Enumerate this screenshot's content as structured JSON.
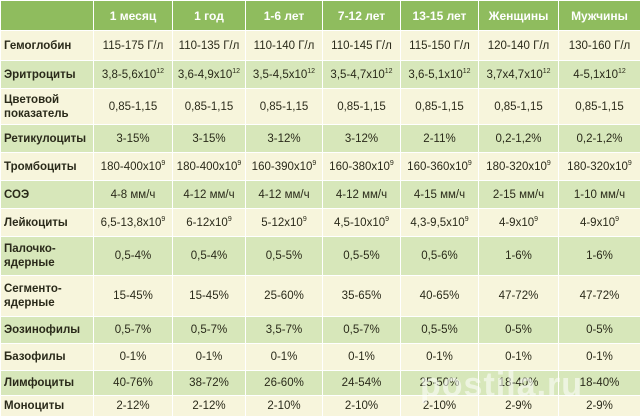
{
  "table": {
    "header": [
      "1 месяц",
      "1 год",
      "1-6 лет",
      "7-12 лет",
      "13-15 лет",
      "Женщины",
      "Мужчины"
    ],
    "rows": [
      {
        "label": "Гемоглобин",
        "cells": [
          "115-175 Г/л",
          "110-135 Г/л",
          "110-140 Г/л",
          "110-145 Г/л",
          "115-150 Г/л",
          "120-140 Г/л",
          "130-160 Г/л"
        ]
      },
      {
        "label": "Эритроциты",
        "cells": [
          {
            "text": "3,8-5,6x10",
            "sup": "12"
          },
          {
            "text": "3,6-4,9x10",
            "sup": "12"
          },
          {
            "text": "3,5-4,5x10",
            "sup": "12"
          },
          {
            "text": "3,5-4,7x10",
            "sup": "12"
          },
          {
            "text": "3,6-5,1x10",
            "sup": "12"
          },
          {
            "text": "3,7x4,7x10",
            "sup": "12"
          },
          {
            "text": "4-5,1x10",
            "sup": "12"
          }
        ]
      },
      {
        "label": "Цветовой показатель",
        "cells": [
          "0,85-1,15",
          "0,85-1,15",
          "0,85-1,15",
          "0,85-1,15",
          "0,85-1,15",
          "0,85-1,15",
          "0,85-1,15"
        ]
      },
      {
        "label": "Ретикулоциты",
        "cells": [
          "3-15%",
          "3-15%",
          "3-12%",
          "3-12%",
          "2-11%",
          "0,2-1,2%",
          "0,2-1,2%"
        ]
      },
      {
        "label": "Тромбоциты",
        "cells": [
          {
            "text": "180-400x10",
            "sup": "9"
          },
          {
            "text": "180-400x10",
            "sup": "9"
          },
          {
            "text": "160-390x10",
            "sup": "9"
          },
          {
            "text": "160-380x10",
            "sup": "9"
          },
          {
            "text": "160-360x10",
            "sup": "9"
          },
          {
            "text": "180-320x10",
            "sup": "9"
          },
          {
            "text": "180-320x10",
            "sup": "9"
          }
        ]
      },
      {
        "label": "СОЭ",
        "cells": [
          "4-8 мм/ч",
          "4-12 мм/ч",
          "4-12 мм/ч",
          "4-12 мм/ч",
          "4-15 мм/ч",
          "2-15 мм/ч",
          "1-10 мм/ч"
        ]
      },
      {
        "label": "Лейкоциты",
        "cells": [
          {
            "text": "6,5-13,8x10",
            "sup": "9"
          },
          {
            "text": "6-12x10",
            "sup": "9"
          },
          {
            "text": "5-12x10",
            "sup": "9"
          },
          {
            "text": "4,5-10x10",
            "sup": "9"
          },
          {
            "text": "4,3-9,5x10",
            "sup": "9"
          },
          {
            "text": "4-9x10",
            "sup": "9"
          },
          {
            "text": "4-9x10",
            "sup": "9"
          }
        ]
      },
      {
        "label": "Палочко-ядерные",
        "cells": [
          "0,5-4%",
          "0,5-4%",
          "0,5-5%",
          "0,5-5%",
          "0,5-6%",
          "1-6%",
          "1-6%"
        ]
      },
      {
        "label": "Сегменто-ядерные",
        "cells": [
          "15-45%",
          "15-45%",
          "25-60%",
          "35-65%",
          "40-65%",
          "47-72%",
          "47-72%"
        ]
      },
      {
        "label": "Эозинофилы",
        "cells": [
          "0,5-7%",
          "0,5-7%",
          "3,5-7%",
          "0,5-7%",
          "0,5-5%",
          "0-5%",
          "0-5%"
        ]
      },
      {
        "label": "Базофилы",
        "cells": [
          "0-1%",
          "0-1%",
          "0-1%",
          "0-1%",
          "0-1%",
          "0-1%",
          "0-1%"
        ]
      },
      {
        "label": "Лимфоциты",
        "cells": [
          "40-76%",
          "38-72%",
          "26-60%",
          "24-54%",
          "25-50%",
          "18-40%",
          "18-40%"
        ]
      },
      {
        "label": "Моноциты",
        "cells": [
          "2-12%",
          "2-12%",
          "2-10%",
          "2-10%",
          "2-10%",
          "2-9%",
          "2-9%"
        ]
      }
    ]
  },
  "watermark": "postila.ru"
}
